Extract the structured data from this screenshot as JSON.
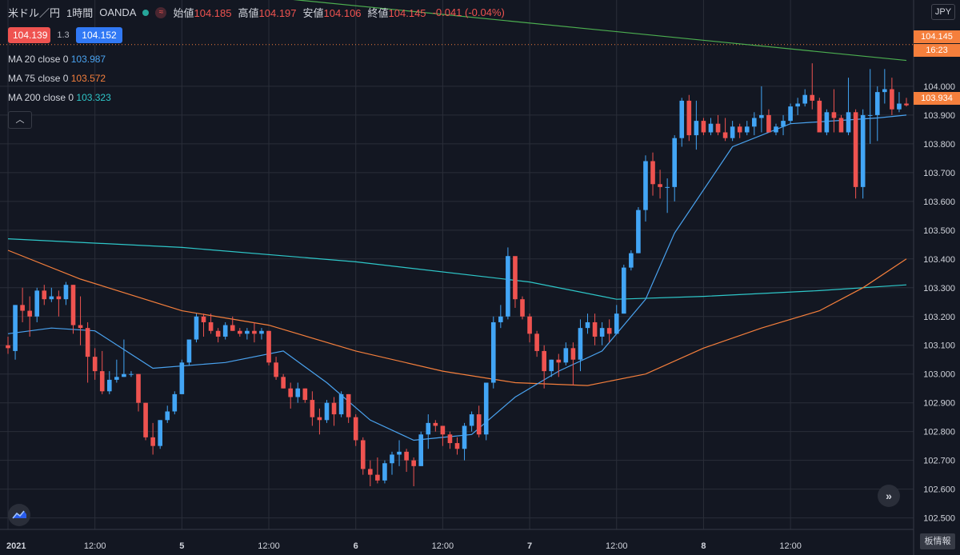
{
  "header": {
    "symbol": "米ドル／円",
    "interval": "1時間",
    "broker": "OANDA",
    "wave_icon": "≈",
    "open_label": "始値",
    "open_value": "104.185",
    "high_label": "高値",
    "high_value": "104.197",
    "low_label": "安値",
    "low_value": "104.106",
    "close_label": "終値",
    "close_value": "104.145",
    "change": "-0.041 (-0.04%)"
  },
  "quote": {
    "sell": "104.139",
    "spread": "1.3",
    "buy": "104.152"
  },
  "indicators": [
    {
      "label": "MA 20 close 0",
      "value": "103.987",
      "color": "#4aa3f0"
    },
    {
      "label": "MA 75 close 0",
      "value": "103.572",
      "color": "#f57f3c"
    },
    {
      "label": "MA 200 close 0",
      "value": "103.323",
      "color": "#2ec7c9"
    }
  ],
  "collapse_icon": "chevron-up-icon",
  "unit_button": "JPY",
  "price_tags": {
    "current": "104.145",
    "countdown": "16:23",
    "last": "103.934"
  },
  "order_book_button": "板情報",
  "chart_data": {
    "type": "candlestick",
    "ylim": [
      102.46,
      104.3
    ],
    "y_ticks": [
      102.5,
      102.6,
      102.7,
      102.8,
      102.9,
      103.0,
      103.1,
      103.2,
      103.3,
      103.4,
      103.5,
      103.6,
      103.7,
      103.8,
      103.9,
      104.0
    ],
    "x_ticks": [
      {
        "bar": 0,
        "label": "2021"
      },
      {
        "bar": 12,
        "label": "12:00"
      },
      {
        "bar": 24,
        "label": "5"
      },
      {
        "bar": 36,
        "label": "12:00"
      },
      {
        "bar": 48,
        "label": "6"
      },
      {
        "bar": 60,
        "label": "12:00"
      },
      {
        "bar": 72,
        "label": "7"
      },
      {
        "bar": 84,
        "label": "12:00"
      },
      {
        "bar": 96,
        "label": "8"
      },
      {
        "bar": 108,
        "label": "12:00"
      }
    ],
    "ohlc": [
      [
        103.1,
        103.13,
        103.07,
        103.09
      ],
      [
        103.08,
        103.24,
        103.05,
        103.24
      ],
      [
        103.24,
        103.3,
        103.18,
        103.22
      ],
      [
        103.22,
        103.27,
        103.13,
        103.2
      ],
      [
        103.2,
        103.3,
        103.18,
        103.29
      ],
      [
        103.29,
        103.31,
        103.24,
        103.26
      ],
      [
        103.26,
        103.3,
        103.25,
        103.27
      ],
      [
        103.27,
        103.29,
        103.2,
        103.26
      ],
      [
        103.26,
        103.32,
        103.24,
        103.31
      ],
      [
        103.31,
        103.31,
        103.14,
        103.17
      ],
      [
        103.17,
        103.27,
        103.1,
        103.16
      ],
      [
        103.16,
        103.18,
        102.97,
        103.06
      ],
      [
        103.06,
        103.09,
        102.98,
        103.01
      ],
      [
        103.01,
        103.08,
        102.93,
        102.94
      ],
      [
        102.94,
        103.01,
        102.93,
        102.98
      ],
      [
        102.98,
        103.05,
        102.97,
        102.99
      ],
      [
        102.99,
        103.12,
        102.99,
        103.0
      ],
      [
        103.0,
        103.01,
        102.99,
        103.0
      ],
      [
        103.0,
        103.0,
        102.87,
        102.9
      ],
      [
        102.9,
        102.9,
        102.77,
        102.78
      ],
      [
        102.78,
        102.83,
        102.72,
        102.75
      ],
      [
        102.75,
        102.84,
        102.74,
        102.84
      ],
      [
        102.84,
        102.89,
        102.83,
        102.87
      ],
      [
        102.87,
        102.94,
        102.86,
        102.93
      ],
      [
        102.93,
        103.05,
        102.93,
        103.04
      ],
      [
        103.04,
        103.12,
        103.03,
        103.12
      ],
      [
        103.12,
        103.21,
        103.11,
        103.2
      ],
      [
        103.2,
        103.21,
        103.13,
        103.18
      ],
      [
        103.18,
        103.21,
        103.14,
        103.15
      ],
      [
        103.15,
        103.16,
        103.11,
        103.13
      ],
      [
        103.13,
        103.18,
        103.12,
        103.17
      ],
      [
        103.17,
        103.2,
        103.15,
        103.15
      ],
      [
        103.15,
        103.16,
        103.13,
        103.14
      ],
      [
        103.14,
        103.16,
        103.12,
        103.15
      ],
      [
        103.15,
        103.18,
        103.11,
        103.14
      ],
      [
        103.14,
        103.16,
        103.12,
        103.15
      ],
      [
        103.15,
        103.15,
        103.03,
        103.04
      ],
      [
        103.04,
        103.06,
        102.98,
        102.99
      ],
      [
        102.99,
        103.0,
        102.95,
        102.95
      ],
      [
        102.95,
        102.97,
        102.88,
        102.92
      ],
      [
        102.92,
        102.97,
        102.9,
        102.95
      ],
      [
        102.95,
        102.95,
        102.9,
        102.91
      ],
      [
        102.91,
        102.94,
        102.82,
        102.85
      ],
      [
        102.85,
        102.88,
        102.79,
        102.84
      ],
      [
        102.84,
        102.91,
        102.83,
        102.9
      ],
      [
        102.9,
        102.92,
        102.82,
        102.86
      ],
      [
        102.86,
        102.94,
        102.85,
        102.93
      ],
      [
        102.93,
        102.93,
        102.83,
        102.85
      ],
      [
        102.85,
        102.86,
        102.75,
        102.77
      ],
      [
        102.77,
        102.78,
        102.65,
        102.67
      ],
      [
        102.67,
        102.7,
        102.61,
        102.65
      ],
      [
        102.65,
        102.71,
        102.62,
        102.63
      ],
      [
        102.63,
        102.7,
        102.62,
        102.69
      ],
      [
        102.69,
        102.73,
        102.65,
        102.72
      ],
      [
        102.72,
        102.77,
        102.68,
        102.73
      ],
      [
        102.73,
        102.74,
        102.66,
        102.7
      ],
      [
        102.7,
        102.71,
        102.61,
        102.68
      ],
      [
        102.68,
        102.8,
        102.68,
        102.79
      ],
      [
        102.79,
        102.86,
        102.74,
        102.83
      ],
      [
        102.83,
        102.84,
        102.8,
        102.82
      ],
      [
        102.82,
        102.82,
        102.75,
        102.79
      ],
      [
        102.79,
        102.8,
        102.74,
        102.76
      ],
      [
        102.76,
        102.78,
        102.72,
        102.74
      ],
      [
        102.74,
        102.83,
        102.7,
        102.82
      ],
      [
        102.82,
        102.87,
        102.8,
        102.86
      ],
      [
        102.86,
        102.89,
        102.78,
        102.79
      ],
      [
        102.79,
        102.97,
        102.77,
        102.97
      ],
      [
        102.97,
        103.2,
        102.95,
        103.18
      ],
      [
        103.18,
        103.24,
        103.16,
        103.2
      ],
      [
        103.2,
        103.44,
        103.19,
        103.41
      ],
      [
        103.41,
        103.4,
        103.23,
        103.26
      ],
      [
        103.26,
        103.27,
        103.19,
        103.2
      ],
      [
        103.2,
        103.21,
        103.11,
        103.14
      ],
      [
        103.14,
        103.15,
        103.06,
        103.08
      ],
      [
        103.08,
        103.1,
        102.95,
        103.01
      ],
      [
        103.01,
        103.05,
        102.99,
        103.05
      ],
      [
        103.05,
        103.07,
        102.99,
        103.04
      ],
      [
        103.04,
        103.11,
        103.03,
        103.09
      ],
      [
        103.09,
        103.11,
        102.96,
        103.05
      ],
      [
        103.05,
        103.19,
        103.01,
        103.16
      ],
      [
        103.16,
        103.21,
        103.14,
        103.18
      ],
      [
        103.18,
        103.21,
        103.1,
        103.13
      ],
      [
        103.13,
        103.18,
        103.1,
        103.16
      ],
      [
        103.16,
        103.19,
        103.11,
        103.14
      ],
      [
        103.14,
        103.24,
        103.14,
        103.21
      ],
      [
        103.21,
        103.38,
        103.21,
        103.37
      ],
      [
        103.37,
        103.43,
        103.36,
        103.42
      ],
      [
        103.42,
        103.58,
        103.42,
        103.57
      ],
      [
        103.57,
        103.76,
        103.53,
        103.74
      ],
      [
        103.74,
        103.77,
        103.62,
        103.66
      ],
      [
        103.66,
        103.71,
        103.61,
        103.65
      ],
      [
        103.65,
        103.68,
        103.56,
        103.65
      ],
      [
        103.65,
        103.83,
        103.6,
        103.82
      ],
      [
        103.82,
        103.96,
        103.79,
        103.95
      ],
      [
        103.95,
        103.97,
        103.81,
        103.83
      ],
      [
        103.83,
        103.95,
        103.78,
        103.88
      ],
      [
        103.88,
        103.89,
        103.83,
        103.84
      ],
      [
        103.84,
        103.89,
        103.83,
        103.87
      ],
      [
        103.87,
        103.9,
        103.83,
        103.84
      ],
      [
        103.84,
        103.89,
        103.81,
        103.82
      ],
      [
        103.82,
        103.88,
        103.81,
        103.86
      ],
      [
        103.86,
        103.87,
        103.82,
        103.84
      ],
      [
        103.84,
        103.88,
        103.83,
        103.86
      ],
      [
        103.86,
        103.91,
        103.83,
        103.89
      ],
      [
        103.89,
        104.0,
        103.84,
        103.9
      ],
      [
        103.9,
        103.92,
        103.84,
        103.84
      ],
      [
        103.84,
        103.87,
        103.83,
        103.86
      ],
      [
        103.86,
        103.9,
        103.83,
        103.88
      ],
      [
        103.88,
        103.94,
        103.87,
        103.93
      ],
      [
        103.93,
        103.96,
        103.9,
        103.94
      ],
      [
        103.94,
        103.99,
        103.93,
        103.97
      ],
      [
        103.97,
        104.08,
        103.92,
        103.95
      ],
      [
        103.95,
        103.96,
        103.84,
        103.84
      ],
      [
        103.84,
        103.92,
        103.83,
        103.91
      ],
      [
        103.91,
        103.99,
        103.84,
        103.89
      ],
      [
        103.89,
        103.9,
        103.84,
        103.84
      ],
      [
        103.84,
        104.03,
        103.83,
        103.91
      ],
      [
        103.91,
        103.92,
        103.61,
        103.65
      ],
      [
        103.65,
        103.92,
        103.61,
        103.9
      ],
      [
        103.9,
        104.06,
        103.8,
        103.9
      ],
      [
        103.9,
        104.0,
        103.81,
        103.98
      ],
      [
        103.98,
        104.06,
        103.94,
        103.99
      ],
      [
        103.99,
        104.03,
        103.9,
        103.92
      ],
      [
        103.92,
        103.98,
        103.91,
        103.94
      ],
      [
        103.94,
        103.96,
        103.93,
        103.934
      ]
    ],
    "ma20": [
      [
        0,
        103.14
      ],
      [
        6,
        103.16
      ],
      [
        12,
        103.15
      ],
      [
        20,
        103.02
      ],
      [
        30,
        103.04
      ],
      [
        38,
        103.08
      ],
      [
        44,
        102.97
      ],
      [
        50,
        102.84
      ],
      [
        56,
        102.77
      ],
      [
        60,
        102.78
      ],
      [
        64,
        102.79
      ],
      [
        70,
        102.92
      ],
      [
        76,
        103.01
      ],
      [
        82,
        103.08
      ],
      [
        88,
        103.26
      ],
      [
        92,
        103.49
      ],
      [
        100,
        103.79
      ],
      [
        108,
        103.87
      ],
      [
        114,
        103.88
      ],
      [
        120,
        103.89
      ],
      [
        124,
        103.9
      ]
    ],
    "ma75": [
      [
        0,
        103.43
      ],
      [
        10,
        103.33
      ],
      [
        24,
        103.22
      ],
      [
        36,
        103.17
      ],
      [
        48,
        103.08
      ],
      [
        60,
        103.01
      ],
      [
        70,
        102.97
      ],
      [
        80,
        102.96
      ],
      [
        88,
        103.0
      ],
      [
        96,
        103.09
      ],
      [
        104,
        103.16
      ],
      [
        112,
        103.22
      ],
      [
        118,
        103.3
      ],
      [
        124,
        103.4
      ]
    ],
    "ma200": [
      [
        0,
        103.47
      ],
      [
        24,
        103.44
      ],
      [
        48,
        103.39
      ],
      [
        72,
        103.32
      ],
      [
        84,
        103.26
      ],
      [
        96,
        103.27
      ],
      [
        112,
        103.29
      ],
      [
        124,
        103.31
      ]
    ],
    "upper_trend": [
      [
        0,
        104.4
      ],
      [
        124,
        104.09
      ]
    ],
    "current_line": 104.145,
    "current_tag_value": 104.145,
    "last_tag_value": 103.934,
    "colors": {
      "up": "#42a5f5",
      "down": "#ef5350",
      "ma20": "#4aa3f0",
      "ma75": "#f57f3c",
      "ma200": "#2ec7c9",
      "trend": "#4caf50",
      "grid": "#2a2e39"
    }
  }
}
